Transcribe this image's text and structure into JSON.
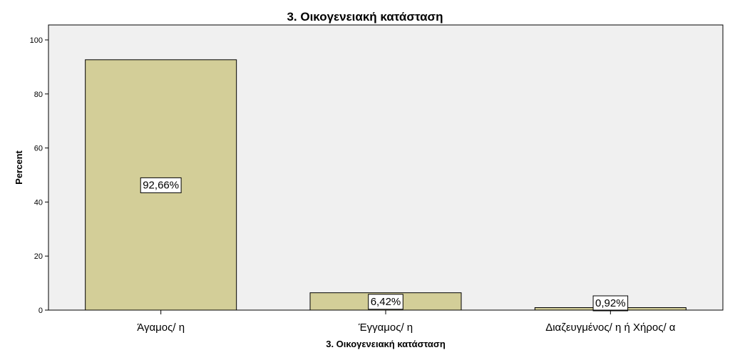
{
  "chart_data": {
    "type": "bar",
    "title": "3. Οικογενειακή κατάσταση",
    "xlabel": "3. Οικογενειακή κατάσταση",
    "ylabel": "Percent",
    "categories": [
      "Άγαμος/ η",
      "Έγγαμος/ η",
      "Διαζευγμένος/ η ή Χήρος/ α"
    ],
    "values": [
      92.66,
      6.42,
      0.92
    ],
    "data_labels": [
      "92,66%",
      "6,42%",
      "0,92%"
    ],
    "ylim": [
      0,
      100
    ],
    "yticks": [
      0,
      20,
      40,
      60,
      80,
      100
    ],
    "grid": false,
    "legend": "none",
    "colors": {
      "bar_fill": "#d3ce98",
      "bar_stroke": "#000000",
      "plot_background": "#f0f0f0",
      "label_box_fill": "#ffffff"
    }
  }
}
